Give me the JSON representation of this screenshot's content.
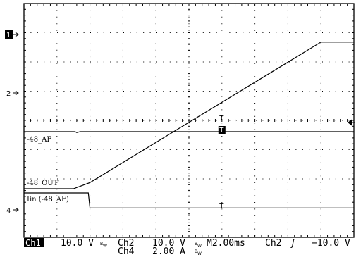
{
  "chart_data": {
    "type": "line",
    "title": "",
    "xlabel": "",
    "ylabel": "",
    "grid": true,
    "x_divisions": 10,
    "y_divisions": 8,
    "x_unit": "ms",
    "x_range_ms": [
      -10,
      10
    ],
    "series": [
      {
        "name": "-48_AF",
        "channel": "Ch1",
        "scale": "10.0 V/div",
        "x": [
          -10,
          -6.9,
          -6.8,
          -6.6,
          -6.5,
          10
        ],
        "values": [
          2.0,
          2.0,
          1.7,
          2.0,
          2.0,
          2.0
        ]
      },
      {
        "name": "-48_OUT",
        "channel": "Ch2",
        "scale": "10.0 V/div",
        "x": [
          -10,
          -7.0,
          -6.0,
          8.0,
          10.0
        ],
        "values": [
          0,
          0,
          2.0,
          48.0,
          48.0
        ]
      },
      {
        "name": "Iin (-48_AF)",
        "channel": "Ch4",
        "scale": "2.00 A/div",
        "x": [
          -10,
          -6.1,
          -6.0,
          10
        ],
        "values": [
          0.0,
          0.0,
          -1.9,
          -1.9
        ]
      }
    ],
    "markers": [
      "1",
      "2",
      "4"
    ],
    "cursor_marker": "T"
  },
  "status": {
    "ch1_label": "Ch1",
    "ch1_scale": "10.0 V",
    "ch2_label": "Ch2",
    "ch2_scale": "10.0 V",
    "ch4_label": "Ch4",
    "ch4_scale": "2.00 A",
    "bw_symbol": "BW",
    "timebase": "M2.00ms",
    "trigger_source": "Ch2",
    "trigger_slope": "ʃ",
    "trigger_level": "−10.0 V"
  },
  "colors": {
    "trace": "#000000",
    "background": "#ffffff"
  }
}
